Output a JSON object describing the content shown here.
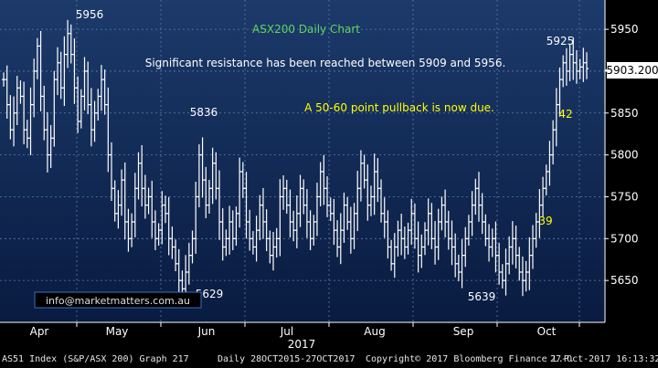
{
  "chart_data": {
    "type": "ohlc",
    "title": "ASX200 Daily Chart",
    "annotations": [
      "Significant resistance has been reached between 5909 and 5956.",
      "A 50-60 point pullback is now due."
    ],
    "price_labels": [
      "5956",
      "5836",
      "5629",
      "5639",
      "5925",
      "42",
      "39"
    ],
    "last_price": "5903.200",
    "contact": "info@marketmatters.com.au",
    "year_label": "2017",
    "ylim": [
      5600,
      5985
    ],
    "y_ticks": [
      5650,
      5700,
      5750,
      5800,
      5850,
      5900,
      5950
    ],
    "x_tick_labels": [
      "Apr",
      "May",
      "Jun",
      "Jul",
      "Aug",
      "Sep",
      "Oct"
    ],
    "series": [
      {
        "values": [
          5890,
          5860,
          5830,
          5850,
          5880,
          5870,
          5830,
          5820,
          5860,
          5900,
          5930,
          5870,
          5830,
          5800,
          5820,
          5890,
          5910,
          5880,
          5920,
          5945,
          5920,
          5880,
          5840,
          5870,
          5900,
          5860,
          5830,
          5850,
          5870,
          5890,
          5860,
          5800,
          5760,
          5730,
          5740,
          5770,
          5720,
          5700,
          5720,
          5760,
          5790,
          5760,
          5740,
          5750,
          5720,
          5700,
          5710,
          5740,
          5730,
          5700,
          5690,
          5670,
          5650,
          5640,
          5660,
          5680,
          5700,
          5750,
          5800,
          5770,
          5740,
          5760,
          5790,
          5760,
          5720,
          5690,
          5700,
          5720,
          5700,
          5730,
          5780,
          5760,
          5720,
          5700,
          5690,
          5710,
          5740,
          5720,
          5700,
          5680,
          5690,
          5700,
          5750,
          5760,
          5740,
          5720,
          5710,
          5730,
          5760,
          5740,
          5720,
          5700,
          5720,
          5750,
          5780,
          5760,
          5740,
          5730,
          5710,
          5690,
          5710,
          5740,
          5720,
          5700,
          5730,
          5760,
          5790,
          5770,
          5740,
          5750,
          5780,
          5760,
          5730,
          5720,
          5690,
          5670,
          5690,
          5710,
          5700,
          5690,
          5710,
          5730,
          5700,
          5680,
          5690,
          5710,
          5730,
          5700,
          5690,
          5720,
          5740,
          5720,
          5700,
          5690,
          5670,
          5660,
          5680,
          5700,
          5720,
          5740,
          5760,
          5740,
          5720,
          5700,
          5690,
          5700,
          5680,
          5660,
          5650,
          5670,
          5690,
          5700,
          5680,
          5660,
          5650,
          5660,
          5680,
          5700,
          5720,
          5740,
          5760,
          5780,
          5800,
          5830,
          5860,
          5890,
          5910,
          5900,
          5920,
          5910,
          5900,
          5905,
          5910,
          5903
        ]
      }
    ]
  },
  "footer": {
    "ticker": "AS51 Index (S&P/ASX 200) Graph 217",
    "range": "Daily 28OCT2015-27OCT2017",
    "copyright": "Copyright© 2017 Bloomberg Finance L.P.",
    "timestamp": "27-Oct-2017 16:13:32"
  },
  "colors": {
    "background": "#000000",
    "plot_top": "#1c3a6b",
    "plot_bottom": "#091b40",
    "bars": "#ffffff",
    "title": "#5fd75f",
    "annotation_white": "#ffffff",
    "annotation_yellow": "#ffff00"
  }
}
